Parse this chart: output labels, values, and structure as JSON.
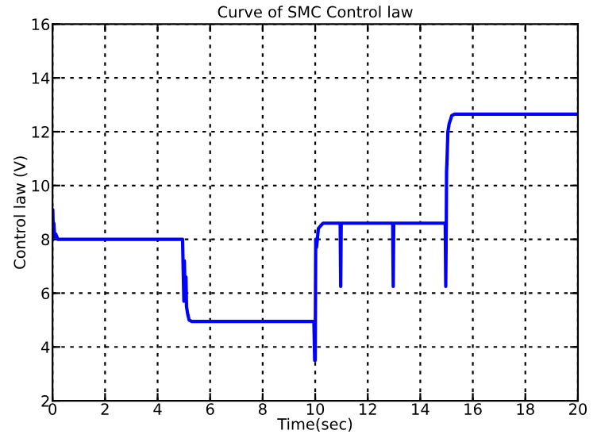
{
  "chart_data": {
    "type": "line",
    "title": "Curve of SMC Control law",
    "xlabel": "Time(sec)",
    "ylabel": "Control law (V)",
    "xlim": [
      0,
      20
    ],
    "xticks": [
      0,
      2,
      4,
      6,
      8,
      10,
      12,
      14,
      16,
      18,
      20
    ],
    "ylim": [
      2,
      16
    ],
    "yticks": [
      2,
      4,
      6,
      8,
      10,
      12,
      14,
      16
    ],
    "grid": true,
    "line_style": "solid",
    "marker": "none",
    "series": [
      {
        "color": "#0000ff",
        "x": [
          0,
          0.01,
          0.03,
          0.05,
          0.08,
          0.12,
          0.2,
          4.95,
          5.0,
          5.02,
          5.05,
          5.08,
          5.1,
          5.15,
          5.2,
          5.3,
          9.95,
          9.98,
          10.0,
          10.02,
          10.05,
          10.08,
          10.12,
          10.2,
          10.3,
          10.5,
          10.95,
          10.97,
          10.99,
          12.95,
          12.97,
          12.99,
          14.95,
          14.97,
          14.99,
          15.0,
          15.02,
          15.05,
          15.1,
          15.2,
          15.3,
          20
        ],
        "values": [
          8.0,
          9.1,
          8.3,
          8.6,
          8.1,
          8.2,
          8.0,
          8.0,
          5.7,
          7.2,
          5.7,
          6.6,
          5.5,
          5.2,
          5.0,
          4.95,
          4.95,
          3.5,
          3.5,
          8.0,
          7.7,
          8.0,
          8.4,
          8.5,
          8.6,
          8.6,
          8.6,
          6.25,
          8.6,
          8.6,
          6.25,
          8.6,
          8.6,
          6.25,
          8.6,
          10.5,
          11.0,
          12.0,
          12.3,
          12.6,
          12.65,
          12.65
        ]
      }
    ]
  }
}
